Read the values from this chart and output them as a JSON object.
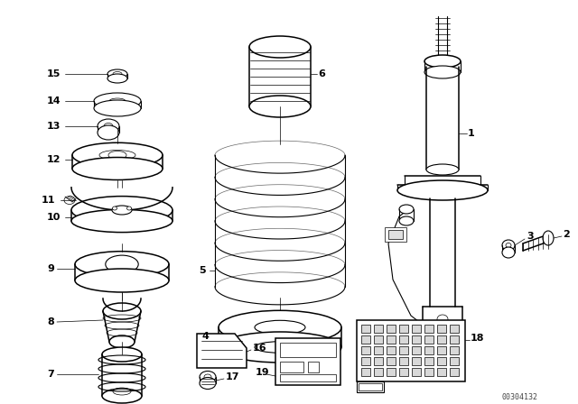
{
  "background_color": "#ffffff",
  "diagram_id": "00304132",
  "line_color": "#000000",
  "label_fontsize": 8,
  "diagram_id_fontsize": 6,
  "fig_w": 6.4,
  "fig_h": 4.48,
  "dpi": 100
}
